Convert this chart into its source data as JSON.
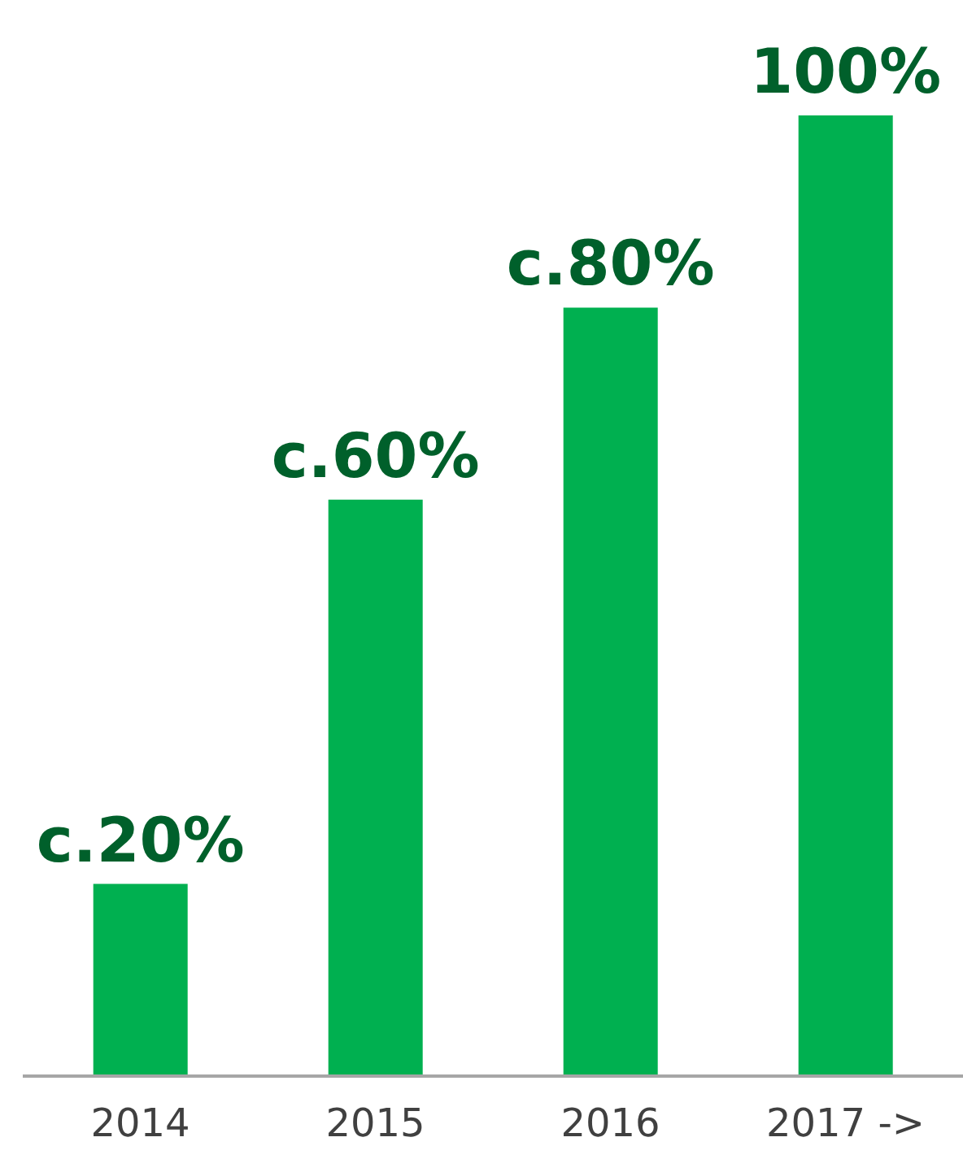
{
  "chart_data": {
    "type": "bar",
    "categories": [
      "2014",
      "2015",
      "2016",
      "2017 ->"
    ],
    "values": [
      20,
      60,
      80,
      100
    ],
    "value_labels": [
      "c.20%",
      "c.60%",
      "c.80%",
      "100%"
    ],
    "color": "#00b050",
    "ylim": [
      0,
      100
    ],
    "tick_labels": "x"
  }
}
